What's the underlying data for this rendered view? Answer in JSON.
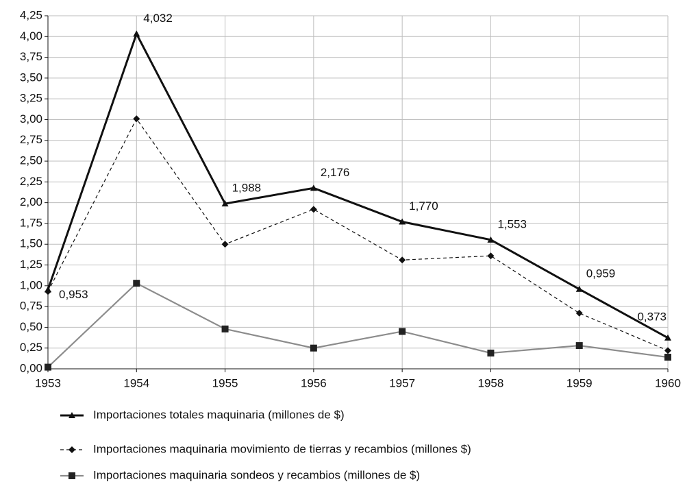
{
  "chart_data": {
    "type": "line",
    "x": [
      1953,
      1954,
      1955,
      1956,
      1957,
      1958,
      1959,
      1960
    ],
    "xlim": [
      1953,
      1960
    ],
    "xticks": [
      1953,
      1954,
      1955,
      1956,
      1957,
      1958,
      1959,
      1960
    ],
    "ylim": [
      0,
      4.25
    ],
    "yticks": [
      {
        "value": 0,
        "label": "0,00"
      },
      {
        "value": 0.25,
        "label": "0,25"
      },
      {
        "value": 0.5,
        "label": "0,50"
      },
      {
        "value": 0.75,
        "label": "0,75"
      },
      {
        "value": 1,
        "label": "1,00"
      },
      {
        "value": 1.25,
        "label": "1,25"
      },
      {
        "value": 1.5,
        "label": "1,50"
      },
      {
        "value": 1.75,
        "label": "1,75"
      },
      {
        "value": 2,
        "label": "2,00"
      },
      {
        "value": 2.25,
        "label": "2,25"
      },
      {
        "value": 2.5,
        "label": "2,50"
      },
      {
        "value": 2.75,
        "label": "2,75"
      },
      {
        "value": 3,
        "label": "3,00"
      },
      {
        "value": 3.25,
        "label": "3,25"
      },
      {
        "value": 3.5,
        "label": "3,50"
      },
      {
        "value": 3.75,
        "label": "3,75"
      },
      {
        "value": 4,
        "label": "4,00"
      },
      {
        "value": 4.25,
        "label": "4,25"
      }
    ],
    "grid": true,
    "legend": "bottom",
    "series": [
      {
        "name": "Importaciones totales maquinaria (millones de $)",
        "color": "#111111",
        "marker": "triangle",
        "line_style": "solid",
        "values": [
          0.953,
          4.032,
          1.988,
          2.176,
          1.77,
          1.553,
          0.959,
          0.373
        ],
        "value_labels": [
          "0,953",
          "4,032",
          "1,988",
          "2,176",
          "1,770",
          "1,553",
          "0,959",
          "0,373"
        ]
      },
      {
        "name": "Importaciones maquinaria movimiento de tierras y recambios (millones $)",
        "color": "#111111",
        "marker": "diamond",
        "line_style": "dashed",
        "values": [
          0.93,
          3.01,
          1.5,
          1.92,
          1.31,
          1.36,
          0.67,
          0.22
        ]
      },
      {
        "name": "Importaciones maquinaria sondeos y recambios (millones de $)",
        "color": "#8c8c8c",
        "marker": "square",
        "line_style": "solid",
        "values": [
          0.02,
          1.03,
          0.48,
          0.25,
          0.45,
          0.19,
          0.28,
          0.14
        ]
      }
    ]
  }
}
